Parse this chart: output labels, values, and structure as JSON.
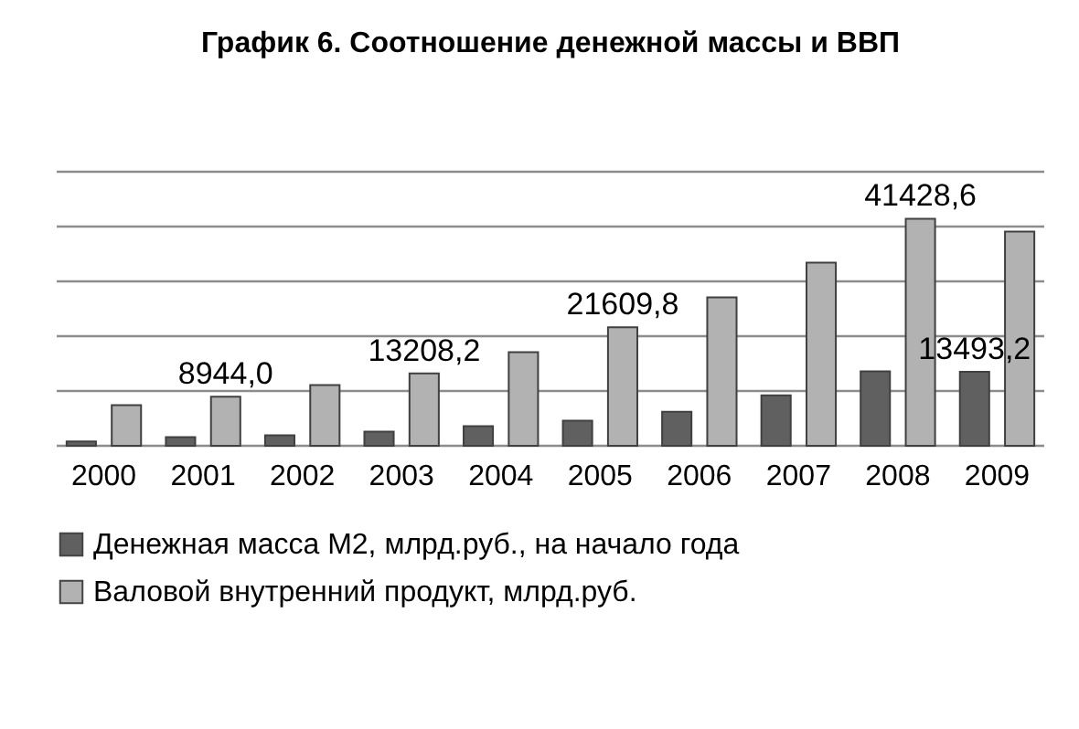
{
  "chart_data": {
    "type": "bar",
    "title": "График 6. Соотношение денежной массы и ВВП",
    "categories": [
      "2000",
      "2001",
      "2002",
      "2003",
      "2004",
      "2005",
      "2006",
      "2007",
      "2008",
      "2009"
    ],
    "series": [
      {
        "name": "Денежная масса М2, млрд.руб., на начало года",
        "color": "#606060",
        "values": [
          800,
          1600,
          1900,
          2600,
          3600,
          4600,
          6200,
          9200,
          13600,
          13493.2
        ],
        "value_labels": [
          null,
          null,
          null,
          null,
          null,
          null,
          null,
          null,
          null,
          "13493,2"
        ]
      },
      {
        "name": "Валовой внутренний продукт, млрд.руб.",
        "color": "#b2b2b2",
        "values": [
          7400,
          8944.0,
          11100,
          13208.2,
          17100,
          21609.8,
          27100,
          33400,
          41428.6,
          39100
        ],
        "value_labels": [
          null,
          "8944,0",
          null,
          "13208,2",
          null,
          "21609,8",
          null,
          null,
          "41428,6",
          null
        ]
      }
    ],
    "ylim": [
      0,
      50000
    ],
    "yticks": [
      {
        "value": 0,
        "label": null
      },
      {
        "value": 10000,
        "label": null
      },
      {
        "value": 20000,
        "label": null
      },
      {
        "value": 30000,
        "label": null
      },
      {
        "value": 40000,
        "label": null
      },
      {
        "value": 50000,
        "label": null
      }
    ],
    "grid": true,
    "legend": "bottom"
  }
}
